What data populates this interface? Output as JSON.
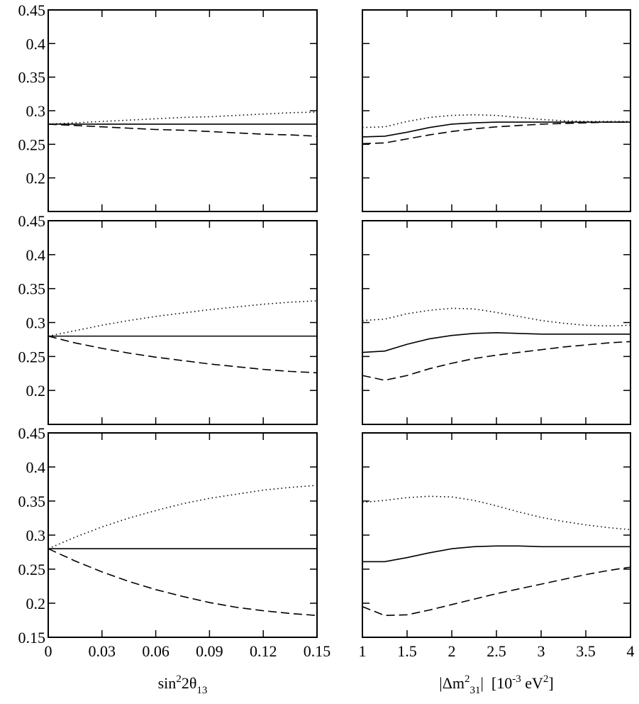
{
  "chart_data": [
    {
      "type": "line",
      "xlim": [
        0,
        0.15
      ],
      "ylim": [
        0.15,
        0.45
      ],
      "yticks": [
        0.2,
        0.25,
        0.3,
        0.35,
        0.4,
        0.45
      ],
      "x": [
        0,
        0.015,
        0.03,
        0.045,
        0.06,
        0.075,
        0.09,
        0.105,
        0.12,
        0.135,
        0.15
      ],
      "series": [
        {
          "style": "solid",
          "color": "#000000",
          "values": [
            0.28,
            0.28,
            0.28,
            0.28,
            0.28,
            0.28,
            0.28,
            0.28,
            0.28,
            0.28,
            0.28
          ]
        },
        {
          "style": "dotted",
          "color": "#000000",
          "values": [
            0.28,
            0.282,
            0.284,
            0.286,
            0.288,
            0.29,
            0.291,
            0.293,
            0.295,
            0.297,
            0.298
          ]
        },
        {
          "style": "dashed",
          "color": "#000000",
          "values": [
            0.28,
            0.278,
            0.276,
            0.274,
            0.272,
            0.271,
            0.269,
            0.267,
            0.265,
            0.264,
            0.262
          ]
        }
      ]
    },
    {
      "type": "line",
      "xlim": [
        1,
        4
      ],
      "ylim": [
        0.15,
        0.45
      ],
      "x": [
        1,
        1.25,
        1.5,
        1.75,
        2,
        2.25,
        2.5,
        2.75,
        3,
        3.25,
        3.5,
        3.75,
        4
      ],
      "series": [
        {
          "style": "solid",
          "color": "#000000",
          "values": [
            0.261,
            0.262,
            0.268,
            0.275,
            0.28,
            0.282,
            0.283,
            0.283,
            0.283,
            0.283,
            0.283,
            0.283,
            0.283
          ]
        },
        {
          "style": "dotted",
          "color": "#000000",
          "values": [
            0.275,
            0.276,
            0.284,
            0.29,
            0.293,
            0.294,
            0.293,
            0.29,
            0.287,
            0.285,
            0.284,
            0.284,
            0.284
          ]
        },
        {
          "style": "dashed",
          "color": "#000000",
          "values": [
            0.251,
            0.252,
            0.258,
            0.264,
            0.269,
            0.273,
            0.276,
            0.278,
            0.28,
            0.281,
            0.282,
            0.283,
            0.283
          ]
        }
      ]
    },
    {
      "type": "line",
      "xlim": [
        0,
        0.15
      ],
      "ylim": [
        0.15,
        0.45
      ],
      "yticks": [
        0.2,
        0.25,
        0.3,
        0.35,
        0.4,
        0.45
      ],
      "x": [
        0,
        0.015,
        0.03,
        0.045,
        0.06,
        0.075,
        0.09,
        0.105,
        0.12,
        0.135,
        0.15
      ],
      "series": [
        {
          "style": "solid",
          "color": "#000000",
          "values": [
            0.28,
            0.28,
            0.28,
            0.28,
            0.28,
            0.28,
            0.28,
            0.28,
            0.28,
            0.28,
            0.28
          ]
        },
        {
          "style": "dotted",
          "color": "#000000",
          "values": [
            0.28,
            0.288,
            0.296,
            0.303,
            0.309,
            0.314,
            0.319,
            0.323,
            0.327,
            0.33,
            0.332
          ]
        },
        {
          "style": "dashed",
          "color": "#000000",
          "values": [
            0.28,
            0.27,
            0.262,
            0.255,
            0.249,
            0.244,
            0.239,
            0.235,
            0.231,
            0.228,
            0.226
          ]
        }
      ]
    },
    {
      "type": "line",
      "xlim": [
        1,
        4
      ],
      "ylim": [
        0.15,
        0.45
      ],
      "x": [
        1,
        1.25,
        1.5,
        1.75,
        2,
        2.25,
        2.5,
        2.75,
        3,
        3.25,
        3.5,
        3.75,
        4
      ],
      "series": [
        {
          "style": "solid",
          "color": "#000000",
          "values": [
            0.256,
            0.258,
            0.268,
            0.276,
            0.281,
            0.284,
            0.285,
            0.284,
            0.283,
            0.283,
            0.283,
            0.283,
            0.283
          ]
        },
        {
          "style": "dotted",
          "color": "#000000",
          "values": [
            0.303,
            0.305,
            0.313,
            0.318,
            0.321,
            0.32,
            0.315,
            0.309,
            0.303,
            0.299,
            0.296,
            0.295,
            0.296
          ]
        },
        {
          "style": "dashed",
          "color": "#000000",
          "values": [
            0.222,
            0.215,
            0.222,
            0.232,
            0.24,
            0.247,
            0.252,
            0.256,
            0.26,
            0.264,
            0.267,
            0.27,
            0.272
          ]
        }
      ]
    },
    {
      "type": "line",
      "xlim": [
        0,
        0.15
      ],
      "ylim": [
        0.15,
        0.45
      ],
      "yticks": [
        0.15,
        0.2,
        0.25,
        0.3,
        0.35,
        0.4,
        0.45
      ],
      "xticks": [
        0,
        0.03,
        0.06,
        0.09,
        0.12,
        0.15
      ],
      "xlabel": [
        {
          "text": "sin",
          "shift": "base"
        },
        {
          "text": "2",
          "shift": "sup"
        },
        {
          "text": "2θ",
          "shift": "base"
        },
        {
          "text": "13",
          "shift": "sub"
        }
      ],
      "x": [
        0,
        0.015,
        0.03,
        0.045,
        0.06,
        0.075,
        0.09,
        0.105,
        0.12,
        0.135,
        0.15
      ],
      "series": [
        {
          "style": "solid",
          "color": "#000000",
          "values": [
            0.28,
            0.28,
            0.28,
            0.28,
            0.28,
            0.28,
            0.28,
            0.28,
            0.28,
            0.28,
            0.28
          ]
        },
        {
          "style": "dotted",
          "color": "#000000",
          "values": [
            0.28,
            0.297,
            0.312,
            0.325,
            0.336,
            0.346,
            0.354,
            0.36,
            0.366,
            0.37,
            0.373
          ]
        },
        {
          "style": "dashed",
          "color": "#000000",
          "values": [
            0.28,
            0.262,
            0.246,
            0.232,
            0.22,
            0.21,
            0.201,
            0.194,
            0.189,
            0.185,
            0.182
          ]
        }
      ]
    },
    {
      "type": "line",
      "xlim": [
        1,
        4
      ],
      "ylim": [
        0.15,
        0.45
      ],
      "xticks": [
        1,
        1.5,
        2,
        2.5,
        3,
        3.5,
        4
      ],
      "xlabel": [
        {
          "text": "|Δm",
          "shift": "base"
        },
        {
          "text": "2",
          "shift": "sup"
        },
        {
          "text": "31",
          "shift": "sub"
        },
        {
          "text": "|  [10",
          "shift": "base"
        },
        {
          "text": "-3",
          "shift": "sup"
        },
        {
          "text": " eV",
          "shift": "base"
        },
        {
          "text": "2",
          "shift": "sup"
        },
        {
          "text": "]",
          "shift": "base"
        }
      ],
      "x": [
        1,
        1.25,
        1.5,
        1.75,
        2,
        2.25,
        2.5,
        2.75,
        3,
        3.25,
        3.5,
        3.75,
        4
      ],
      "series": [
        {
          "style": "solid",
          "color": "#000000",
          "values": [
            0.261,
            0.261,
            0.267,
            0.274,
            0.28,
            0.283,
            0.284,
            0.284,
            0.283,
            0.283,
            0.283,
            0.283,
            0.283
          ]
        },
        {
          "style": "dotted",
          "color": "#000000",
          "values": [
            0.348,
            0.351,
            0.355,
            0.357,
            0.356,
            0.351,
            0.343,
            0.334,
            0.326,
            0.32,
            0.315,
            0.311,
            0.308
          ]
        },
        {
          "style": "dashed",
          "color": "#000000",
          "values": [
            0.195,
            0.182,
            0.183,
            0.19,
            0.198,
            0.206,
            0.214,
            0.221,
            0.228,
            0.235,
            0.242,
            0.248,
            0.253
          ]
        }
      ]
    }
  ]
}
